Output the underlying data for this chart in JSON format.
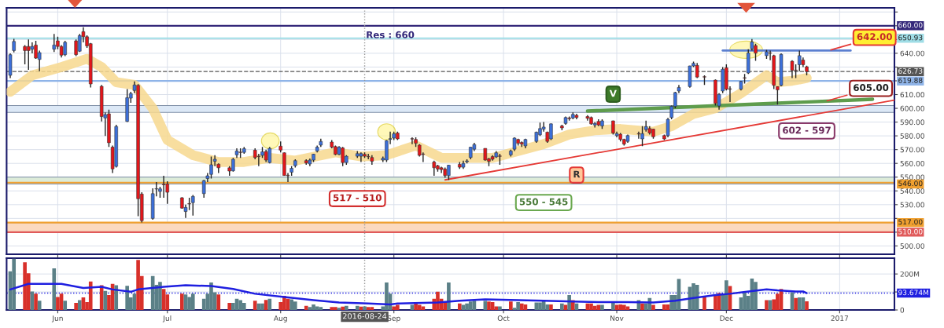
{
  "chart_data": [
    {
      "type": "candlestick",
      "x": [
        "2016-05-19",
        "2016-05-20",
        "2016-05-23",
        "2016-05-24",
        "2016-05-25",
        "2016-05-26",
        "2016-05-27",
        "2016-05-31",
        "2016-06-01",
        "2016-06-02",
        "2016-06-03",
        "2016-06-06",
        "2016-06-07",
        "2016-06-08",
        "2016-06-09",
        "2016-06-10",
        "2016-06-13",
        "2016-06-14",
        "2016-06-15",
        "2016-06-16",
        "2016-06-17",
        "2016-06-20",
        "2016-06-21",
        "2016-06-22",
        "2016-06-23",
        "2016-06-24",
        "2016-06-27",
        "2016-06-28",
        "2016-06-29",
        "2016-06-30",
        "2016-07-01",
        "2016-07-05",
        "2016-07-06",
        "2016-07-07",
        "2016-07-08",
        "2016-07-11",
        "2016-07-12",
        "2016-07-13",
        "2016-07-14",
        "2016-07-15",
        "2016-07-18",
        "2016-07-19",
        "2016-07-20",
        "2016-07-21",
        "2016-07-22",
        "2016-07-25",
        "2016-07-26",
        "2016-07-27",
        "2016-07-28",
        "2016-07-29",
        "2016-08-01",
        "2016-08-02",
        "2016-08-03",
        "2016-08-04",
        "2016-08-05",
        "2016-08-08",
        "2016-08-09",
        "2016-08-10",
        "2016-08-11",
        "2016-08-12",
        "2016-08-15",
        "2016-08-16",
        "2016-08-17",
        "2016-08-18",
        "2016-08-19",
        "2016-08-22",
        "2016-08-23",
        "2016-08-24",
        "2016-08-25",
        "2016-08-26",
        "2016-08-29",
        "2016-08-30",
        "2016-08-31",
        "2016-09-01",
        "2016-09-02",
        "2016-09-06",
        "2016-09-07",
        "2016-09-08",
        "2016-09-09",
        "2016-09-12",
        "2016-09-13",
        "2016-09-14",
        "2016-09-15",
        "2016-09-16",
        "2016-09-19",
        "2016-09-20",
        "2016-09-21",
        "2016-09-22",
        "2016-09-23",
        "2016-09-26",
        "2016-09-27",
        "2016-09-28",
        "2016-09-29",
        "2016-09-30",
        "2016-10-03",
        "2016-10-04",
        "2016-10-05",
        "2016-10-06",
        "2016-10-07",
        "2016-10-10",
        "2016-10-11",
        "2016-10-12",
        "2016-10-13",
        "2016-10-14",
        "2016-10-17",
        "2016-10-18",
        "2016-10-19",
        "2016-10-20",
        "2016-10-21",
        "2016-10-24",
        "2016-10-25",
        "2016-10-26",
        "2016-10-27",
        "2016-10-28",
        "2016-10-31",
        "2016-11-01",
        "2016-11-02",
        "2016-11-03",
        "2016-11-04",
        "2016-11-07",
        "2016-11-08",
        "2016-11-09",
        "2016-11-10",
        "2016-11-11",
        "2016-11-14",
        "2016-11-15",
        "2016-11-16",
        "2016-11-17",
        "2016-11-18",
        "2016-11-21",
        "2016-11-22",
        "2016-11-23",
        "2016-11-25",
        "2016-11-28",
        "2016-11-29",
        "2016-11-30",
        "2016-12-01",
        "2016-12-02",
        "2016-12-05",
        "2016-12-06",
        "2016-12-07",
        "2016-12-08",
        "2016-12-09",
        "2016-12-12",
        "2016-12-13",
        "2016-12-14",
        "2016-12-15",
        "2016-12-16",
        "2016-12-19",
        "2016-12-20",
        "2016-12-21",
        "2016-12-22",
        "2016-12-23"
      ],
      "ohlc": [
        [
          624,
          640,
          622,
          639
        ],
        [
          642,
          650.5,
          640.6,
          648.6
        ],
        [
          645,
          646,
          632,
          642
        ],
        [
          645,
          650,
          628,
          642
        ],
        [
          643,
          648,
          640,
          645
        ],
        [
          646,
          649,
          636,
          636.5
        ],
        [
          635.5,
          642,
          627,
          640.5
        ],
        [
          643,
          654,
          641,
          646
        ],
        [
          649,
          652,
          643,
          645
        ],
        [
          645,
          646,
          637,
          638.6
        ],
        [
          639,
          649,
          638,
          648
        ],
        [
          649,
          650,
          638,
          639
        ],
        [
          641.5,
          654,
          641,
          652.9
        ],
        [
          655.7,
          658.9,
          648,
          652
        ],
        [
          652,
          653,
          644,
          645.4
        ],
        [
          647,
          647.5,
          615.2,
          617.7
        ],
        [
          616,
          617,
          590.5,
          594
        ],
        [
          593,
          597,
          580,
          595.5
        ],
        [
          596,
          599,
          572,
          575
        ],
        [
          571.8,
          573,
          553,
          556
        ],
        [
          557.8,
          588,
          557,
          586.8
        ],
        [
          590.5,
          614,
          590,
          607.7
        ],
        [
          607.4,
          612,
          604,
          610.7
        ],
        [
          613,
          619.6,
          611,
          617
        ],
        [
          616.7,
          617.5,
          521.6,
          534.3
        ],
        [
          537.7,
          539,
          517,
          518.4
        ],
        [
          520,
          541.8,
          519,
          538
        ],
        [
          541.3,
          546.5,
          536,
          541.6
        ],
        [
          539.6,
          543,
          535,
          541.5
        ],
        [
          544.7,
          551,
          535,
          544.5
        ],
        [
          545,
          547,
          530.6,
          539
        ],
        [
          535,
          535.5,
          527,
          527.5
        ],
        [
          525,
          530,
          520.3,
          528
        ],
        [
          530.7,
          535,
          526,
          530.5
        ],
        [
          531.5,
          537,
          522,
          536
        ],
        [
          538,
          548,
          535,
          547.4
        ],
        [
          549,
          553,
          546.5,
          551
        ],
        [
          552,
          565,
          549,
          559
        ],
        [
          561.5,
          566,
          558,
          563
        ],
        [
          559.4,
          560,
          553,
          556.8
        ],
        [
          556.8,
          558,
          551,
          554.4
        ],
        [
          554.6,
          564,
          554,
          563
        ],
        [
          566.2,
          571,
          564,
          569
        ],
        [
          568.1,
          571,
          564,
          567.9
        ],
        [
          568,
          572,
          567,
          570.7
        ],
        [
          569.6,
          571,
          563,
          564.3
        ],
        [
          565.1,
          567,
          558,
          564.9
        ],
        [
          565.8,
          572,
          564,
          568.4
        ],
        [
          568.6,
          570,
          561,
          562.4
        ],
        [
          560.6,
          572,
          560,
          570.9
        ],
        [
          572.5,
          576,
          568,
          569.6
        ],
        [
          567.7,
          568,
          551,
          551.2
        ],
        [
          551.3,
          553,
          546.5,
          551.1
        ],
        [
          553.6,
          558,
          551,
          556.4
        ],
        [
          558.3,
          563,
          557,
          562
        ],
        [
          562,
          563,
          559,
          560.2
        ],
        [
          559.6,
          563.5,
          558,
          562.4
        ],
        [
          562.4,
          567,
          561,
          566.7
        ],
        [
          569,
          573,
          568,
          571.8
        ],
        [
          573.3,
          578,
          572,
          576
        ],
        [
          575.5,
          577,
          571,
          571.8
        ],
        [
          572.2,
          573,
          566,
          566.6
        ],
        [
          566.6,
          572.5,
          566,
          571.8
        ],
        [
          571.2,
          572,
          558,
          560.6
        ],
        [
          560.6,
          566,
          559,
          565.2
        ],
        [
          565.2,
          569,
          564,
          567.1
        ],
        [
          565.2,
          568,
          561,
          567.1
        ],
        [
          566.6,
          568,
          564,
          565.2
        ],
        [
          565,
          567,
          563,
          564.8
        ],
        [
          564.3,
          566,
          559,
          561.5
        ],
        [
          562.4,
          565,
          561,
          563.7
        ],
        [
          562.4,
          577,
          561,
          576.5
        ],
        [
          577.4,
          583,
          574,
          578
        ],
        [
          578.4,
          583,
          577,
          581.5
        ],
        [
          582,
          583,
          577,
          577.8
        ],
        [
          577.9,
          579,
          574,
          577.7
        ],
        [
          577.4,
          579,
          572,
          574.6
        ],
        [
          573.3,
          574,
          565,
          565.8
        ],
        [
          566.7,
          568,
          561,
          566.5
        ],
        [
          561,
          562,
          551,
          556.8
        ],
        [
          558.3,
          559,
          554,
          555.9
        ],
        [
          556.8,
          557.5,
          553,
          555.5
        ],
        [
          555.9,
          557,
          549.5,
          551.2
        ],
        [
          551.2,
          559,
          548,
          558.7
        ],
        [
          559.3,
          561,
          556,
          557.2
        ],
        [
          557.2,
          562,
          556,
          560
        ],
        [
          561.2,
          563,
          560,
          561.8
        ],
        [
          564.3,
          572,
          563,
          571.8
        ],
        [
          570.3,
          575,
          569,
          573.7
        ],
        [
          570.9,
          571,
          562,
          562.4
        ],
        [
          563.4,
          564,
          558,
          561.5
        ],
        [
          564.9,
          566,
          562,
          563
        ],
        [
          564.7,
          569,
          564,
          567.7
        ],
        [
          565.3,
          567,
          559,
          565.1
        ],
        [
          566.2,
          570,
          565,
          569
        ],
        [
          570.3,
          579,
          569,
          578.4
        ],
        [
          577.4,
          578,
          573,
          574.6
        ],
        [
          575.2,
          576,
          572,
          574
        ],
        [
          572.7,
          578,
          571,
          577.4
        ],
        [
          576,
          583,
          575,
          582.7
        ],
        [
          580.8,
          589.6,
          580,
          585.3
        ],
        [
          584.9,
          590,
          583,
          586.4
        ],
        [
          582.7,
          583,
          575,
          576
        ],
        [
          577.8,
          589,
          577,
          588.7
        ],
        [
          587.2,
          588,
          584,
          585.8
        ],
        [
          589,
          594,
          588,
          593.3
        ],
        [
          593,
          594,
          591,
          592.5
        ],
        [
          593,
          597,
          592,
          595.6
        ],
        [
          594.9,
          596,
          592,
          593.4
        ],
        [
          594,
          595,
          591,
          592.8
        ],
        [
          593.3,
          594,
          588,
          588.7
        ],
        [
          587.9,
          590,
          586,
          589
        ],
        [
          590.5,
          592,
          587,
          587.9
        ],
        [
          587.2,
          592,
          585,
          590.9
        ],
        [
          590.9,
          591,
          581,
          582.1
        ],
        [
          580.2,
          583,
          579,
          581.6
        ],
        [
          581.2,
          582,
          576,
          577.4
        ],
        [
          577.4,
          578,
          573,
          574
        ],
        [
          576,
          581,
          575,
          580.2
        ],
        [
          581.6,
          583,
          578,
          581.4
        ],
        [
          577.8,
          587,
          572.5,
          581.6
        ],
        [
          584.5,
          591,
          583,
          586.8
        ],
        [
          585.3,
          587,
          581,
          582.1
        ],
        [
          584.9,
          585,
          578,
          579.3
        ],
        [
          580.2,
          581,
          577,
          577.8
        ],
        [
          580.2,
          593,
          579,
          592
        ],
        [
          593.3,
          602,
          592,
          601.4
        ],
        [
          601.4,
          612,
          600,
          611.5
        ],
        [
          612.6,
          617,
          611,
          615.2
        ],
        [
          615.8,
          631,
          615,
          630.8
        ],
        [
          630.8,
          634,
          630,
          632.7
        ],
        [
          631.2,
          633,
          622,
          622.7
        ],
        [
          622.9,
          624,
          617,
          622.7
        ],
        [
          620.5,
          621,
          602,
          603.6
        ],
        [
          601.8,
          611,
          599,
          610.2
        ],
        [
          612.6,
          630,
          611,
          628.4
        ],
        [
          629.5,
          632,
          613,
          613.9
        ],
        [
          614.1,
          616,
          604.6,
          613.9
        ],
        [
          613.9,
          620,
          613,
          619.6
        ],
        [
          622.1,
          625,
          618,
          622
        ],
        [
          625.7,
          643,
          625,
          640.2
        ],
        [
          643.3,
          650.4,
          642,
          648.2
        ],
        [
          645.6,
          647,
          634.5,
          640.1
        ],
        [
          638.3,
          642.5,
          636,
          641.1
        ],
        [
          640.2,
          642,
          635,
          640
        ],
        [
          638.3,
          639,
          614,
          616.7
        ],
        [
          615.8,
          616,
          602.7,
          613.4
        ],
        [
          616.7,
          640,
          616,
          639.2
        ],
        [
          634.2,
          635,
          622,
          627.6
        ],
        [
          627.7,
          632,
          622,
          627.5
        ],
        [
          631.7,
          642,
          627,
          638.3
        ],
        [
          635.1,
          637,
          630,
          631.7
        ],
        [
          630.2,
          631,
          624,
          626.73
        ]
      ],
      "colors": [
        "#3c6fd9",
        "#3c6fd9",
        "#e3161b",
        "#e3161b",
        "#3c6fd9",
        "#e3161b",
        "#3c6fd9",
        "#3c6fd9",
        "#e3161b",
        "#e3161b",
        "#3c6fd9",
        "#e3161b",
        "#3c6fd9",
        "#e3161b",
        "#e3161b",
        "#e3161b",
        "#e3161b",
        "#3c6fd9",
        "#e3161b",
        "#e3161b",
        "#3c6fd9",
        "#3c6fd9",
        "#3c6fd9",
        "#3c6fd9",
        "#e3161b",
        "#e3161b",
        "#3c6fd9",
        "#3c6fd9",
        "#3c6fd9",
        "#e3161b",
        "#e3161b",
        "#e3161b",
        "#3c6fd9",
        "#e3161b",
        "#3c6fd9",
        "#3c6fd9",
        "#3c6fd9",
        "#3c6fd9",
        "#3c6fd9",
        "#e3161b",
        "#e3161b",
        "#3c6fd9",
        "#3c6fd9",
        "#e3161b",
        "#3c6fd9",
        "#e3161b",
        "#e3161b",
        "#3c6fd9",
        "#e3161b",
        "#3c6fd9",
        "#e3161b",
        "#e3161b",
        "#e3161b",
        "#3c6fd9",
        "#3c6fd9",
        "#e3161b",
        "#3c6fd9",
        "#3c6fd9",
        "#3c6fd9",
        "#3c6fd9",
        "#e3161b",
        "#e3161b",
        "#3c6fd9",
        "#e3161b",
        "#3c6fd9",
        "#3c6fd9",
        "#3c6fd9",
        "#e3161b",
        "#e3161b",
        "#e3161b",
        "#3c6fd9",
        "#3c6fd9",
        "#3c6fd9",
        "#3c6fd9",
        "#e3161b",
        "#e3161b",
        "#e3161b",
        "#e3161b",
        "#e3161b",
        "#e3161b",
        "#e3161b",
        "#e3161b",
        "#e3161b",
        "#3c6fd9",
        "#e3161b",
        "#3c6fd9",
        "#3c6fd9",
        "#3c6fd9",
        "#3c6fd9",
        "#e3161b",
        "#e3161b",
        "#e3161b",
        "#3c6fd9",
        "#e3161b",
        "#3c6fd9",
        "#3c6fd9",
        "#e3161b",
        "#e3161b",
        "#3c6fd9",
        "#3c6fd9",
        "#3c6fd9",
        "#3c6fd9",
        "#e3161b",
        "#3c6fd9",
        "#e3161b",
        "#3c6fd9",
        "#e3161b",
        "#3c6fd9",
        "#e3161b",
        "#e3161b",
        "#e3161b",
        "#3c6fd9",
        "#e3161b",
        "#3c6fd9",
        "#e3161b",
        "#3c6fd9",
        "#e3161b",
        "#e3161b",
        "#3c6fd9",
        "#e3161b",
        "#3c6fd9",
        "#3c6fd9",
        "#e3161b",
        "#e3161b",
        "#e3161b",
        "#3c6fd9",
        "#3c6fd9",
        "#3c6fd9",
        "#3c6fd9",
        "#3c6fd9",
        "#3c6fd9",
        "#e3161b",
        "#e3161b",
        "#e3161b",
        "#3c6fd9",
        "#3c6fd9",
        "#e3161b",
        "#e3161b",
        "#3c6fd9",
        "#e3161b",
        "#3c6fd9",
        "#3c6fd9",
        "#e3161b",
        "#3c6fd9",
        "#e3161b",
        "#e3161b",
        "#e3161b",
        "#3c6fd9",
        "#e3161b",
        "#e3161b",
        "#3c6fd9",
        "#e3161b",
        "#e3161b"
      ],
      "series": [
        {
          "type": "line",
          "color": "#f7d88e",
          "x": [
            "2016-05-19",
            "2016-05-25",
            "2016-06-02",
            "2016-06-09",
            "2016-06-13",
            "2016-06-17",
            "2016-06-22",
            "2016-06-27",
            "2016-07-01",
            "2016-07-08",
            "2016-07-15",
            "2016-07-22",
            "2016-07-29",
            "2016-08-05",
            "2016-08-16",
            "2016-08-23",
            "2016-08-30",
            "2016-09-07",
            "2016-09-14",
            "2016-09-21",
            "2016-09-28",
            "2016-10-05",
            "2016-10-12",
            "2016-10-19",
            "2016-10-26",
            "2016-11-02",
            "2016-11-11",
            "2016-11-16",
            "2016-11-22",
            "2016-11-28",
            "2016-12-05",
            "2016-12-12",
            "2016-12-15",
            "2016-12-19",
            "2016-12-23"
          ],
          "values": [
            612,
            624,
            630,
            636,
            630,
            619,
            617,
            600,
            577,
            566,
            561,
            561,
            564,
            562,
            568,
            565,
            566,
            573,
            564,
            564,
            564,
            569,
            574,
            581,
            584,
            585,
            583,
            587,
            596,
            600,
            611,
            624,
            619,
            620,
            622
          ]
        },
        {
          "type": "line",
          "color": "#5e9c4c",
          "x": [
            "2016-10-24",
            "2017-01-10"
          ],
          "values": [
            598,
            606.6
          ]
        },
        {
          "type": "line",
          "color": "#e53935",
          "x": [
            "2016-09-15",
            "2017-01-16"
          ],
          "values": [
            548,
            606
          ]
        },
        {
          "type": "line",
          "color": "#5b7fd0",
          "x": [
            "2016-11-30",
            "2017-01-04"
          ],
          "values": [
            642,
            642
          ]
        }
      ],
      "xlim": [
        "2016-05-18",
        "2017-01-16"
      ],
      "ylim": [
        494,
        673
      ],
      "xticks": [
        {
          "value": "2016-06-01",
          "label": null
        },
        {
          "value": "2016-07-01",
          "label": null
        },
        {
          "value": "2016-08-01",
          "label": null
        },
        {
          "value": "2016-09-01",
          "label": null
        },
        {
          "value": "2016-10-01",
          "label": null
        },
        {
          "value": "2016-11-01",
          "label": null
        },
        {
          "value": "2016-12-01",
          "label": null
        },
        {
          "value": "2017-01-01",
          "label": null
        }
      ],
      "yticks": [
        {
          "value": 500,
          "label": "500.00"
        },
        {
          "value": 510,
          "label": null
        },
        {
          "value": 520,
          "label": null
        },
        {
          "value": 530,
          "label": "530.00"
        },
        {
          "value": 540,
          "label": "540.00"
        },
        {
          "value": 550,
          "label": "550.00"
        },
        {
          "value": 560,
          "label": "560.00"
        },
        {
          "value": 570,
          "label": "570.00"
        },
        {
          "value": 580,
          "label": "580.00"
        },
        {
          "value": 590,
          "label": "590.00"
        },
        {
          "value": 600,
          "label": "600.00"
        },
        {
          "value": 610,
          "label": "610.00"
        },
        {
          "value": 620,
          "label": null
        },
        {
          "value": 630,
          "label": null
        },
        {
          "value": 640,
          "label": "640.00"
        },
        {
          "value": 650,
          "label": null
        },
        {
          "value": 660,
          "label": null
        },
        {
          "value": 670,
          "label": null
        }
      ],
      "tick_labels": "y",
      "grid": true,
      "bands": [
        {
          "axis": "y",
          "from": 545,
          "to": 550,
          "color": "#dcebd8"
        },
        {
          "axis": "y",
          "from": 597,
          "to": 602,
          "color": "#dce8f6"
        },
        {
          "axis": "y",
          "from": 510,
          "to": 517,
          "color": "#fbd9bf"
        }
      ],
      "ref_lines": [
        {
          "axis": "y",
          "value": 660,
          "label": "660.00",
          "color": "#34287a"
        },
        {
          "axis": "y",
          "value": 650.93,
          "label": "650.93",
          "color": "#9fdde6"
        },
        {
          "axis": "y",
          "value": 626.73,
          "label": "626.73",
          "color": "#555555",
          "line_style": "dashed"
        },
        {
          "axis": "y",
          "value": 619.88,
          "label": "619.88",
          "color": "#8fb4e8"
        },
        {
          "axis": "y",
          "value": 546,
          "label": "546.00",
          "color": "#f0a030"
        },
        {
          "axis": "y",
          "value": 517,
          "label": "517.00",
          "color": "#f0a030"
        },
        {
          "axis": "y",
          "value": 510,
          "label": "510.00",
          "color": "#e05a5a"
        },
        {
          "axis": "x",
          "value": "2016-08-24",
          "color": "#999999",
          "line_style": "dotted"
        }
      ],
      "annotations": [
        {
          "text": "Res : 660",
          "x": "2016-08-31",
          "y": 660
        },
        {
          "text": "517 - 510",
          "x": "2016-08-22",
          "y": 517
        },
        {
          "text": "550 - 545",
          "x": "2016-10-12",
          "y": 545
        },
        {
          "text": "602 - 597",
          "x": "2016-12-23",
          "y": 597
        },
        {
          "text": "605.00",
          "x": "2016-12-28",
          "y": 605
        },
        {
          "text": "642.00",
          "x": "2016-12-29",
          "y": 642
        },
        {
          "text": "V",
          "x": "2016-10-31",
          "y": 600
        },
        {
          "text": "R",
          "x": "2016-10-21",
          "y": 565
        }
      ]
    },
    {
      "type": "bar",
      "x": [
        "2016-05-19",
        "2016-05-20",
        "2016-05-23",
        "2016-05-24",
        "2016-05-25",
        "2016-05-26",
        "2016-05-27",
        "2016-05-31",
        "2016-06-01",
        "2016-06-02",
        "2016-06-03",
        "2016-06-06",
        "2016-06-07",
        "2016-06-08",
        "2016-06-09",
        "2016-06-10",
        "2016-06-13",
        "2016-06-14",
        "2016-06-15",
        "2016-06-16",
        "2016-06-17",
        "2016-06-20",
        "2016-06-21",
        "2016-06-22",
        "2016-06-23",
        "2016-06-24",
        "2016-06-27",
        "2016-06-28",
        "2016-06-29",
        "2016-06-30",
        "2016-07-01",
        "2016-07-05",
        "2016-07-06",
        "2016-07-07",
        "2016-07-08",
        "2016-07-11",
        "2016-07-12",
        "2016-07-13",
        "2016-07-14",
        "2016-07-15",
        "2016-07-18",
        "2016-07-19",
        "2016-07-20",
        "2016-07-21",
        "2016-07-22",
        "2016-07-25",
        "2016-07-26",
        "2016-07-27",
        "2016-07-28",
        "2016-07-29",
        "2016-08-01",
        "2016-08-02",
        "2016-08-03",
        "2016-08-04",
        "2016-08-05",
        "2016-08-08",
        "2016-08-09",
        "2016-08-10",
        "2016-08-11",
        "2016-08-12",
        "2016-08-15",
        "2016-08-16",
        "2016-08-17",
        "2016-08-18",
        "2016-08-19",
        "2016-08-22",
        "2016-08-23",
        "2016-08-24",
        "2016-08-25",
        "2016-08-26",
        "2016-08-29",
        "2016-08-30",
        "2016-08-31",
        "2016-09-01",
        "2016-09-02",
        "2016-09-06",
        "2016-09-07",
        "2016-09-08",
        "2016-09-09",
        "2016-09-12",
        "2016-09-13",
        "2016-09-14",
        "2016-09-15",
        "2016-09-16",
        "2016-09-19",
        "2016-09-20",
        "2016-09-21",
        "2016-09-22",
        "2016-09-23",
        "2016-09-26",
        "2016-09-27",
        "2016-09-28",
        "2016-09-29",
        "2016-09-30",
        "2016-10-03",
        "2016-10-04",
        "2016-10-05",
        "2016-10-06",
        "2016-10-07",
        "2016-10-10",
        "2016-10-11",
        "2016-10-12",
        "2016-10-13",
        "2016-10-14",
        "2016-10-17",
        "2016-10-18",
        "2016-10-19",
        "2016-10-20",
        "2016-10-21",
        "2016-10-24",
        "2016-10-25",
        "2016-10-26",
        "2016-10-27",
        "2016-10-28",
        "2016-10-31",
        "2016-11-01",
        "2016-11-02",
        "2016-11-03",
        "2016-11-04",
        "2016-11-07",
        "2016-11-08",
        "2016-11-09",
        "2016-11-10",
        "2016-11-11",
        "2016-11-14",
        "2016-11-15",
        "2016-11-16",
        "2016-11-17",
        "2016-11-18",
        "2016-11-21",
        "2016-11-22",
        "2016-11-23",
        "2016-11-25",
        "2016-11-28",
        "2016-11-29",
        "2016-11-30",
        "2016-12-01",
        "2016-12-02",
        "2016-12-05",
        "2016-12-06",
        "2016-12-07",
        "2016-12-08",
        "2016-12-09",
        "2016-12-12",
        "2016-12-13",
        "2016-12-14",
        "2016-12-15",
        "2016-12-16",
        "2016-12-19",
        "2016-12-20",
        "2016-12-21",
        "2016-12-22",
        "2016-12-23"
      ],
      "series": [
        {
          "type": "bar",
          "values": [
            215,
            285,
            265,
            204,
            103,
            90,
            51,
            231,
            72,
            90,
            51,
            39,
            55,
            70,
            44,
            158,
            137,
            106,
            83,
            145,
            137,
            134,
            70,
            90,
            278,
            189,
            189,
            140,
            156,
            117,
            86,
            90,
            86,
            72,
            90,
            62,
            90,
            153,
            98,
            86,
            39,
            39,
            62,
            55,
            39,
            51,
            36,
            36,
            56,
            62,
            44,
            78,
            62,
            59,
            47,
            23,
            16,
            31,
            20,
            16,
            16,
            16,
            12,
            19,
            23,
            23,
            19,
            20,
            16,
            16,
            20,
            153,
            90,
            20,
            28,
            28,
            36,
            28,
            20,
            62,
            101,
            62,
            44,
            153,
            36,
            28,
            36,
            47,
            51,
            50,
            47,
            44,
            20,
            20,
            47,
            12,
            44,
            36,
            31,
            41,
            41,
            55,
            31,
            31,
            36,
            28,
            83,
            55,
            36,
            36,
            36,
            23,
            28,
            28,
            41,
            28,
            31,
            28,
            20,
            55,
            36,
            36,
            67,
            28,
            31,
            31,
            83,
            83,
            172,
            129,
            148,
            140,
            78,
            78,
            94,
            90,
            165,
            133,
            70,
            98,
            78,
            175,
            156,
            55,
            55,
            59,
            90,
            117,
            98,
            67,
            70,
            70,
            48
          ],
          "colors": [
            "#5b8087",
            "#5b8087",
            "#d8302a",
            "#d8302a",
            "#5b8087",
            "#d8302a",
            "#5b8087",
            "#5b8087",
            "#d8302a",
            "#d8302a",
            "#5b8087",
            "#d8302a",
            "#5b8087",
            "#d8302a",
            "#d8302a",
            "#d8302a",
            "#d8302a",
            "#5b8087",
            "#d8302a",
            "#d8302a",
            "#5b8087",
            "#5b8087",
            "#5b8087",
            "#5b8087",
            "#d8302a",
            "#d8302a",
            "#5b8087",
            "#5b8087",
            "#5b8087",
            "#d8302a",
            "#d8302a",
            "#d8302a",
            "#5b8087",
            "#5b8087",
            "#5b8087",
            "#5b8087",
            "#5b8087",
            "#5b8087",
            "#5b8087",
            "#d8302a",
            "#d8302a",
            "#5b8087",
            "#5b8087",
            "#5b8087",
            "#5b8087",
            "#d8302a",
            "#5b8087",
            "#5b8087",
            "#d8302a",
            "#5b8087",
            "#d8302a",
            "#d8302a",
            "#d8302a",
            "#5b8087",
            "#5b8087",
            "#d8302a",
            "#5b8087",
            "#5b8087",
            "#5b8087",
            "#5b8087",
            "#d8302a",
            "#d8302a",
            "#5b8087",
            "#d8302a",
            "#5b8087",
            "#5b8087",
            "#d8302a",
            "#5b8087",
            "#d8302a",
            "#d8302a",
            "#5b8087",
            "#5b8087",
            "#5b8087",
            "#d8302a",
            "#d8302a",
            "#5b8087",
            "#d8302a",
            "#d8302a",
            "#d8302a",
            "#d8302a",
            "#d8302a",
            "#d8302a",
            "#d8302a",
            "#5b8087",
            "#d8302a",
            "#5b8087",
            "#5b8087",
            "#5b8087",
            "#5b8087",
            "#5b8087",
            "#d8302a",
            "#d8302a",
            "#d8302a",
            "#5b8087",
            "#d8302a",
            "#5b8087",
            "#5b8087",
            "#d8302a",
            "#d8302a",
            "#5b8087",
            "#5b8087",
            "#5b8087",
            "#5b8087",
            "#d8302a",
            "#5b8087",
            "#d8302a",
            "#5b8087",
            "#d8302a",
            "#5b8087",
            "#d8302a",
            "#d8302a",
            "#d8302a",
            "#d8302a",
            "#5b8087",
            "#5b8087",
            "#d8302a",
            "#d8302a",
            "#d8302a",
            "#d8302a",
            "#5b8087",
            "#d8302a",
            "#5b8087",
            "#5b8087",
            "#d8302a",
            "#d8302a",
            "#d8302a",
            "#5b8087",
            "#5b8087",
            "#5b8087",
            "#5b8087",
            "#5b8087",
            "#5b8087",
            "#d8302a",
            "#d8302a",
            "#d8302a",
            "#5b8087",
            "#5b8087",
            "#d8302a",
            "#5b8087",
            "#5b8087",
            "#5b8087",
            "#5b8087",
            "#5b8087",
            "#d8302a",
            "#5b8087",
            "#d8302a",
            "#d8302a",
            "#d8302a",
            "#5b8087",
            "#d8302a",
            "#5b8087",
            "#5b8087",
            "#d8302a"
          ]
        },
        {
          "type": "line",
          "color": "#1f1fe0",
          "x": [
            "2016-05-19",
            "2016-05-24",
            "2016-05-31",
            "2016-06-02",
            "2016-06-08",
            "2016-06-13",
            "2016-06-16",
            "2016-06-21",
            "2016-06-23",
            "2016-06-30",
            "2016-07-06",
            "2016-07-13",
            "2016-07-19",
            "2016-07-25",
            "2016-08-02",
            "2016-08-10",
            "2016-08-17",
            "2016-08-25",
            "2016-08-31",
            "2016-09-02",
            "2016-09-13",
            "2016-09-19",
            "2016-09-26",
            "2016-10-12",
            "2016-10-20",
            "2016-10-27",
            "2016-11-04",
            "2016-11-11",
            "2016-11-17",
            "2016-11-22",
            "2016-11-28",
            "2016-12-02",
            "2016-12-07",
            "2016-12-12",
            "2016-12-15",
            "2016-12-20",
            "2016-12-22",
            "2016-12-23"
          ],
          "values": [
            114,
            145,
            145,
            145,
            122,
            129,
            114,
            101,
            114,
            129,
            137,
            133,
            117,
            90,
            72,
            55,
            41,
            36,
            31,
            36,
            41,
            51,
            59,
            51,
            47,
            44,
            44,
            41,
            51,
            67,
            83,
            90,
            103,
            114,
            109,
            103,
            103,
            93.674
          ]
        }
      ],
      "xlim": [
        "2016-05-18",
        "2017-01-16"
      ],
      "ylim": [
        0,
        288
      ],
      "xticks": [
        {
          "value": "2016-06-01",
          "label": "Jun"
        },
        {
          "value": "2016-07-01",
          "label": "Jul"
        },
        {
          "value": "2016-08-01",
          "label": "Aug"
        },
        {
          "value": "2016-09-01",
          "label": "Sep"
        },
        {
          "value": "2016-10-01",
          "label": "Oct"
        },
        {
          "value": "2016-11-01",
          "label": "Nov"
        },
        {
          "value": "2016-12-01",
          "label": "Dec"
        },
        {
          "value": "2017-01-01",
          "label": "2017"
        }
      ],
      "yticks": [
        {
          "value": 0,
          "label": "0"
        },
        {
          "value": 100,
          "label": null
        },
        {
          "value": 200,
          "label": "200M"
        }
      ],
      "grid": true,
      "ref_lines": [
        {
          "axis": "y",
          "value": 93.674,
          "label": "93.674M",
          "color": "#1f1fe0",
          "line_style": "dotted"
        },
        {
          "axis": "x",
          "value": "2016-08-24",
          "label": "2016-08-24",
          "color": "#999999",
          "line_style": "dotted"
        }
      ]
    }
  ]
}
